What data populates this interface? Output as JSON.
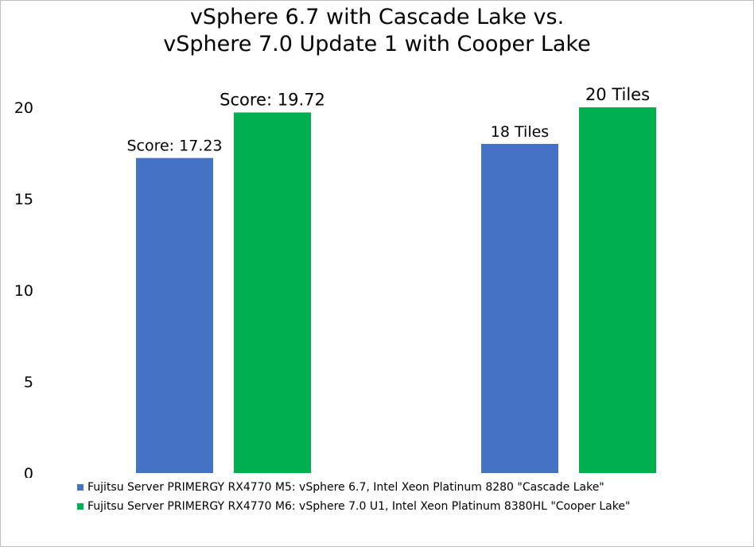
{
  "chart_data": {
    "type": "bar",
    "title": [
      "vSphere 6.7 with Cascade Lake vs.",
      "vSphere 7.0 Update 1 with Cooper Lake"
    ],
    "xlabel": "",
    "ylabel": "",
    "ylim": [
      0,
      20
    ],
    "yticks": [
      "0",
      "5",
      "10",
      "15",
      "20"
    ],
    "grid": false,
    "legend_position": "bottom-left",
    "groups": 2,
    "series": [
      {
        "name": "Fujitsu Server PRIMERGY RX4770 M5: vSphere 6.7, Intel Xeon Platinum 8280 \"Cascade Lake\"",
        "color": "#4472c4",
        "values": [
          17.23,
          18
        ],
        "labels": [
          "Score: 17.23",
          "18 Tiles"
        ]
      },
      {
        "name": "Fujitsu Server PRIMERGY RX4770 M6: vSphere 7.0 U1, Intel Xeon Platinum 8380HL \"Cooper Lake\"",
        "color": "#00b050",
        "values": [
          19.72,
          20
        ],
        "labels": [
          "Score: 19.72",
          "20 Tiles"
        ]
      }
    ]
  }
}
